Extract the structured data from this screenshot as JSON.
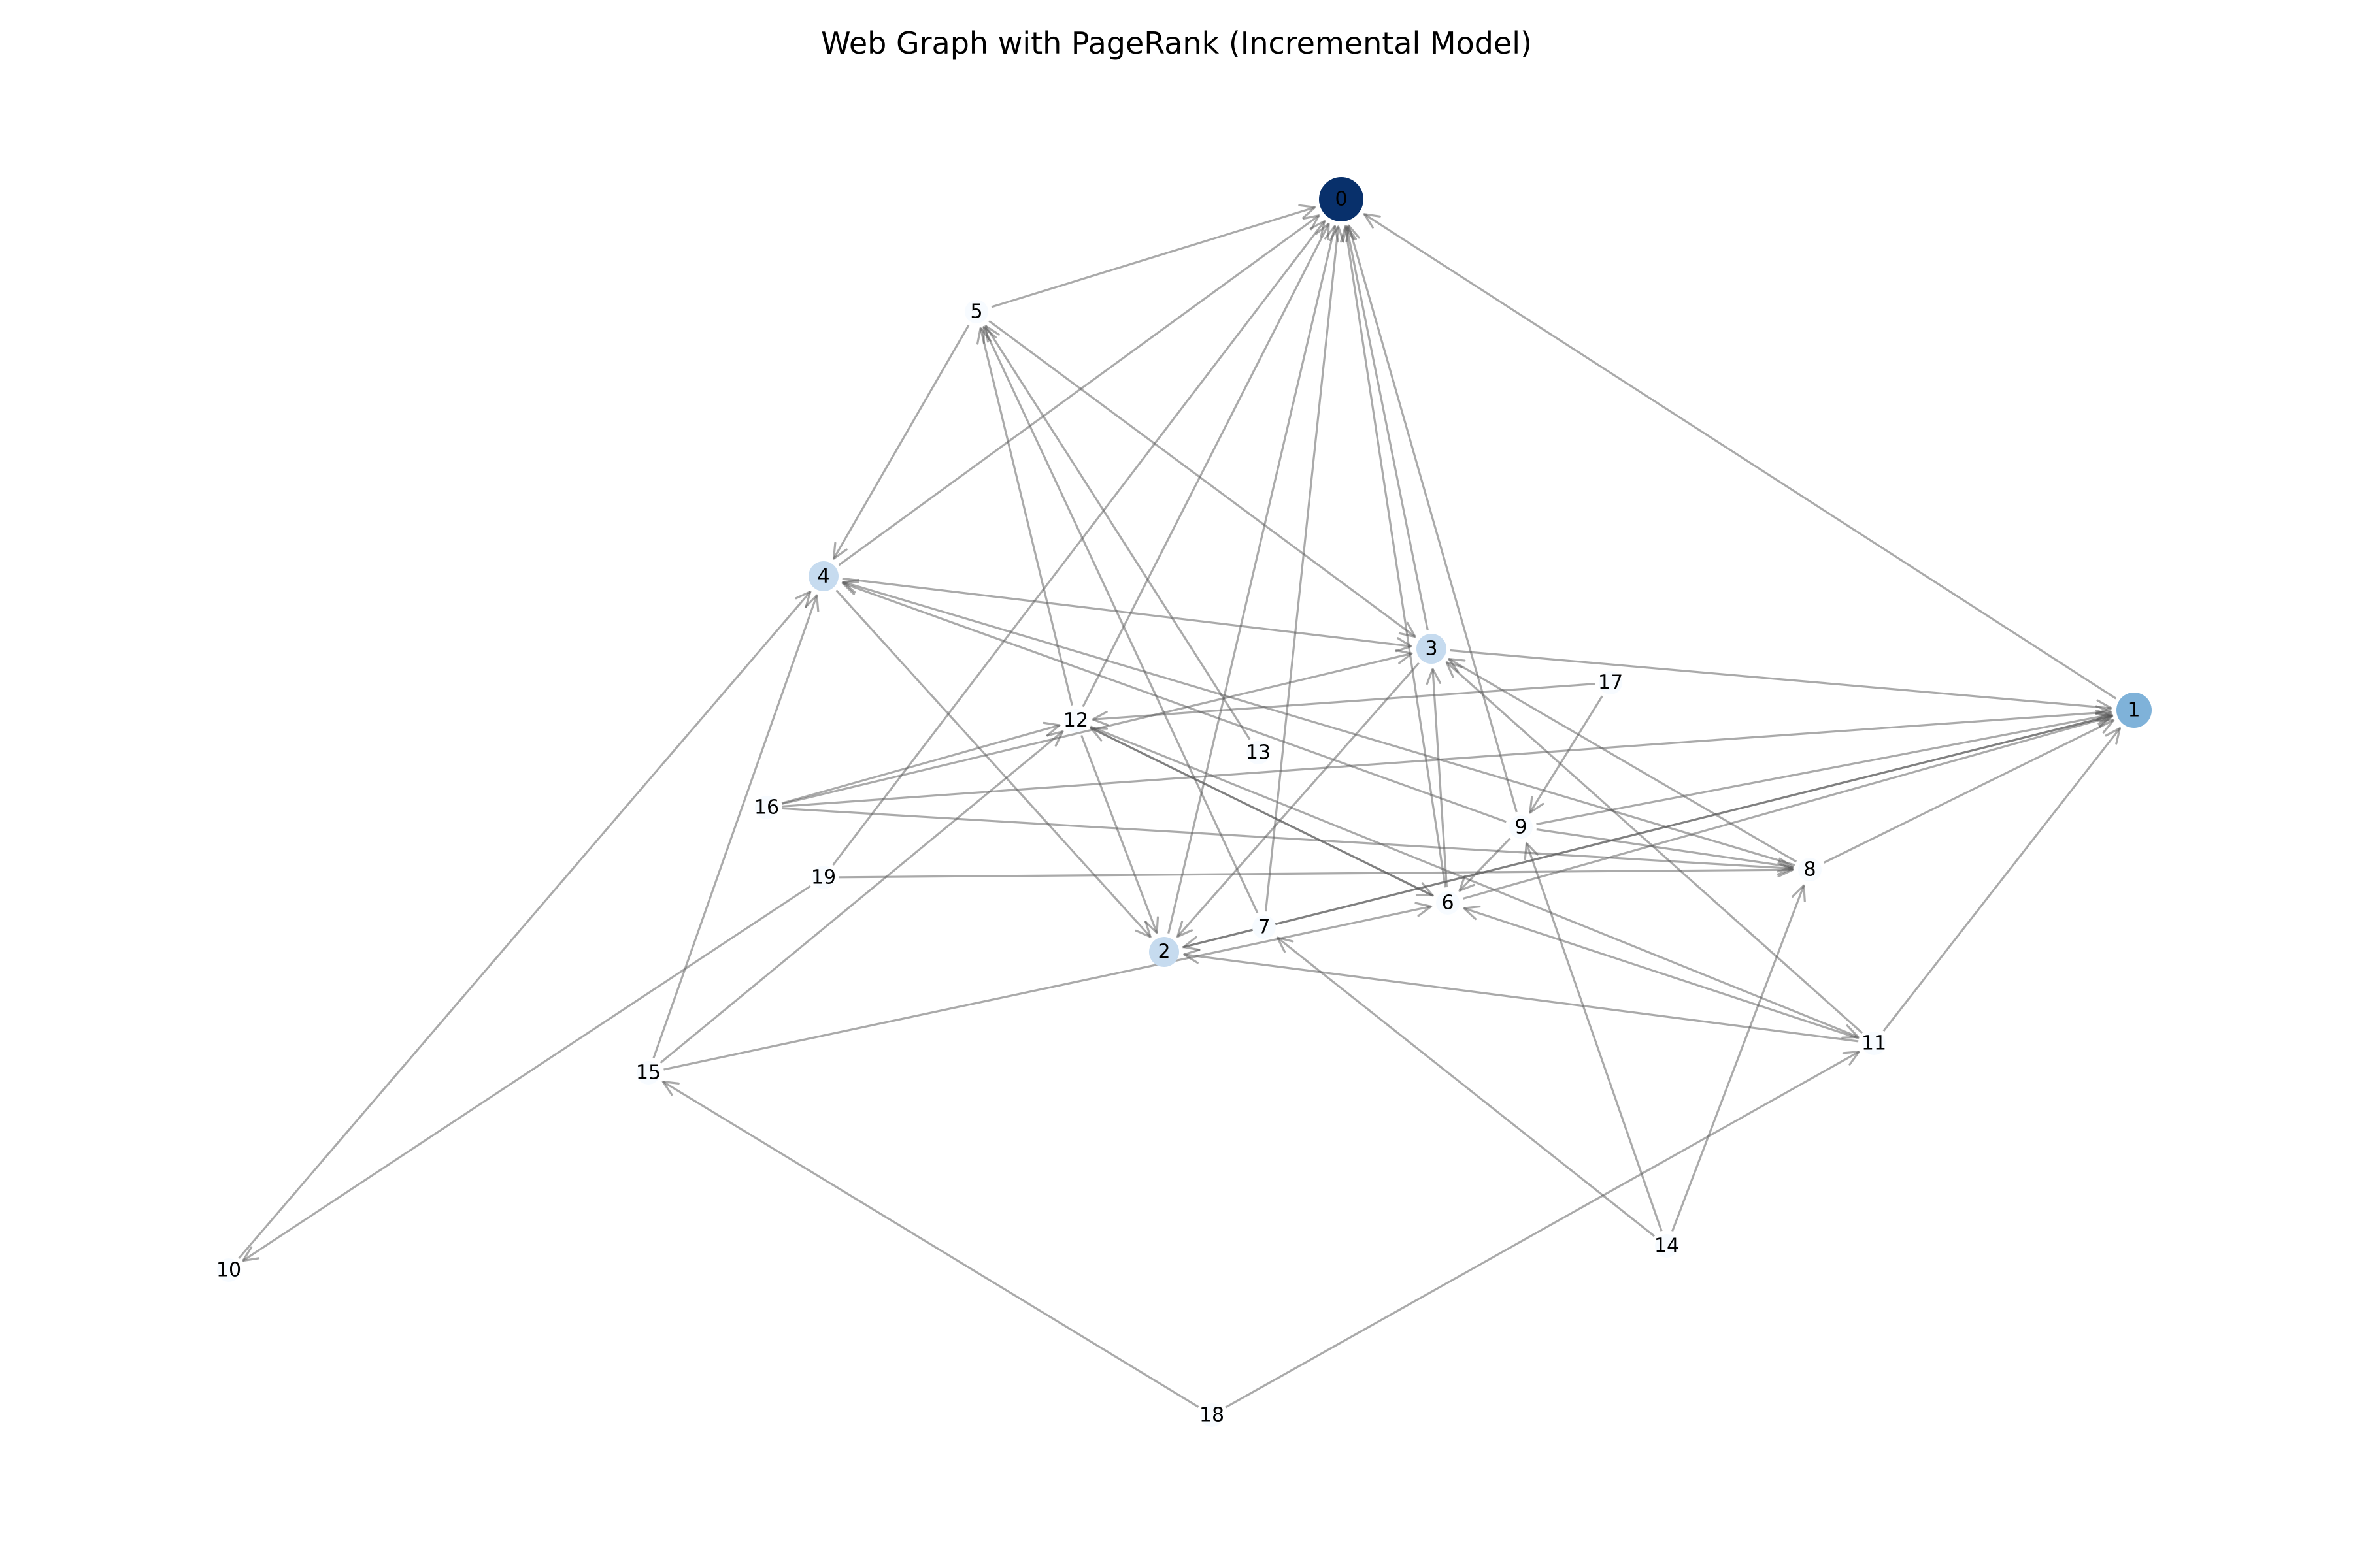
{
  "title": "Web Graph with PageRank (Incremental Model)",
  "colors": {
    "rank_high": "#08306b",
    "rank_mid": "#7fb2d9",
    "rank_low": "#c6dbef",
    "rank_min": "#f7fbff",
    "edge": "#555555"
  },
  "nodes": [
    {
      "id": "0",
      "label": "0",
      "rank": "high"
    },
    {
      "id": "1",
      "label": "1",
      "rank": "mid"
    },
    {
      "id": "2",
      "label": "2",
      "rank": "low"
    },
    {
      "id": "3",
      "label": "3",
      "rank": "low"
    },
    {
      "id": "4",
      "label": "4",
      "rank": "low"
    },
    {
      "id": "5",
      "label": "5",
      "rank": "min"
    },
    {
      "id": "6",
      "label": "6",
      "rank": "min"
    },
    {
      "id": "7",
      "label": "7",
      "rank": "min"
    },
    {
      "id": "8",
      "label": "8",
      "rank": "min"
    },
    {
      "id": "9",
      "label": "9",
      "rank": "min"
    },
    {
      "id": "10",
      "label": "10",
      "rank": "min"
    },
    {
      "id": "11",
      "label": "11",
      "rank": "min"
    },
    {
      "id": "12",
      "label": "12",
      "rank": "min"
    },
    {
      "id": "13",
      "label": "13",
      "rank": "min"
    },
    {
      "id": "14",
      "label": "14",
      "rank": "min"
    },
    {
      "id": "15",
      "label": "15",
      "rank": "min"
    },
    {
      "id": "16",
      "label": "16",
      "rank": "min"
    },
    {
      "id": "17",
      "label": "17",
      "rank": "min"
    },
    {
      "id": "18",
      "label": "18",
      "rank": "min"
    },
    {
      "id": "19",
      "label": "19",
      "rank": "min"
    }
  ],
  "edges": [
    [
      "5",
      "0"
    ],
    [
      "4",
      "0"
    ],
    [
      "12",
      "0"
    ],
    [
      "2",
      "0"
    ],
    [
      "3",
      "0"
    ],
    [
      "6",
      "0"
    ],
    [
      "9",
      "0"
    ],
    [
      "7",
      "0"
    ],
    [
      "19",
      "0"
    ],
    [
      "1",
      "0"
    ],
    [
      "5",
      "4"
    ],
    [
      "5",
      "3"
    ],
    [
      "12",
      "5"
    ],
    [
      "13",
      "5"
    ],
    [
      "7",
      "5"
    ],
    [
      "4",
      "3"
    ],
    [
      "4",
      "2"
    ],
    [
      "9",
      "4"
    ],
    [
      "8",
      "4"
    ],
    [
      "3",
      "1"
    ],
    [
      "3",
      "2"
    ],
    [
      "17",
      "12"
    ],
    [
      "17",
      "9"
    ],
    [
      "16",
      "12"
    ],
    [
      "16",
      "3"
    ],
    [
      "16",
      "1"
    ],
    [
      "16",
      "8"
    ],
    [
      "12",
      "2"
    ],
    [
      "12",
      "6"
    ],
    [
      "12",
      "11"
    ],
    [
      "15",
      "12"
    ],
    [
      "15",
      "4"
    ],
    [
      "15",
      "6"
    ],
    [
      "19",
      "8"
    ],
    [
      "19",
      "10"
    ],
    [
      "10",
      "4"
    ],
    [
      "9",
      "1"
    ],
    [
      "9",
      "8"
    ],
    [
      "9",
      "6"
    ],
    [
      "8",
      "1"
    ],
    [
      "8",
      "3"
    ],
    [
      "6",
      "1"
    ],
    [
      "6",
      "3"
    ],
    [
      "6",
      "12"
    ],
    [
      "2",
      "1"
    ],
    [
      "1",
      "2"
    ],
    [
      "11",
      "1"
    ],
    [
      "11",
      "2"
    ],
    [
      "11",
      "6"
    ],
    [
      "11",
      "3"
    ],
    [
      "14",
      "7"
    ],
    [
      "14",
      "9"
    ],
    [
      "14",
      "8"
    ],
    [
      "18",
      "15"
    ],
    [
      "18",
      "11"
    ]
  ]
}
